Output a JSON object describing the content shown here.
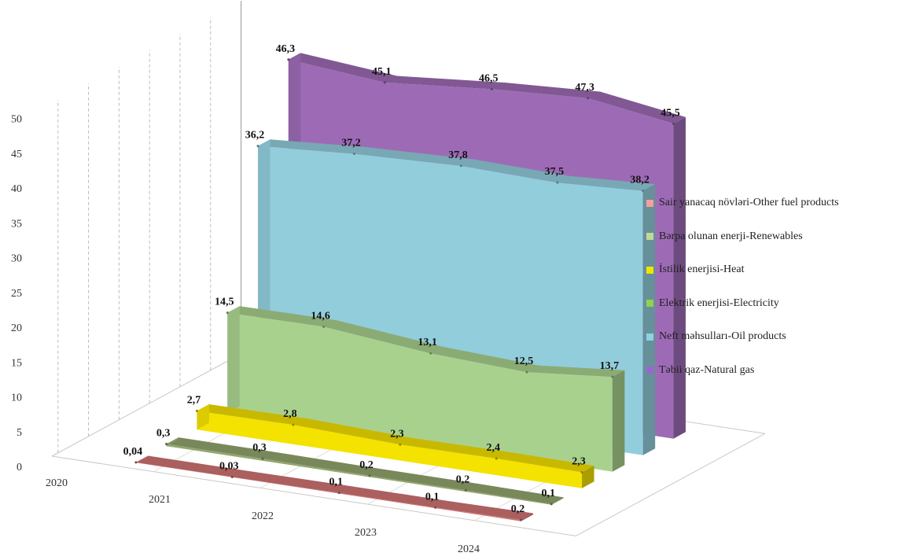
{
  "chart_data": {
    "type": "area",
    "title": "",
    "xlabel": "",
    "ylabel": "",
    "categories": [
      "2020",
      "2021",
      "2022",
      "2023",
      "2024"
    ],
    "ylim": [
      0,
      50
    ],
    "yticks": [
      "0",
      "5",
      "10",
      "15",
      "20",
      "25",
      "30",
      "35",
      "40",
      "45",
      "50"
    ],
    "grid": true,
    "legend_position": "right",
    "series": [
      {
        "name": "Təbii qaz-Natural gas",
        "color": "#9d6bb5",
        "values": [
          46.3,
          45.1,
          46.5,
          47.3,
          45.5
        ],
        "labels": [
          "46,3",
          "45,1",
          "46,5",
          "47,3",
          "45,5"
        ]
      },
      {
        "name": "Neft məhsulları-Oil products",
        "color": "#92cddc",
        "values": [
          36.2,
          37.2,
          37.8,
          37.5,
          38.2
        ],
        "labels": [
          "36,2",
          "37,2",
          "37,8",
          "37,5",
          "38,2"
        ]
      },
      {
        "name": "Elektrik enerjisi-Electricity",
        "color": "#a9d18e",
        "values": [
          14.5,
          14.6,
          13.1,
          12.5,
          13.7
        ],
        "labels": [
          "14,5",
          "14,6",
          "13,1",
          "12,5",
          "13,7"
        ]
      },
      {
        "name": "İstilik enerjisi-Heat",
        "color": "#f4e200",
        "values": [
          2.7,
          2.8,
          2.3,
          2.4,
          2.3
        ],
        "labels": [
          "2,7",
          "2,8",
          "2,3",
          "2,4",
          "2,3"
        ]
      },
      {
        "name": "Bərpa olunan enerji-Renewables",
        "color": "#93a66e",
        "values": [
          0.3,
          0.3,
          0.2,
          0.2,
          0.1
        ],
        "labels": [
          "0,3",
          "0,3",
          "0,2",
          "0,2",
          "0,1"
        ]
      },
      {
        "name": "Sair yanacaq növləri-Other fuel products",
        "color": "#d07474",
        "values": [
          0.04,
          0.03,
          0.1,
          0.1,
          0.2
        ],
        "labels": [
          "0,04",
          "0,03",
          "0,1",
          "0,1",
          "0,2"
        ]
      }
    ],
    "legend": [
      {
        "label": "Sair yanacaq növləri-Other fuel products",
        "color": "#f4a09c"
      },
      {
        "label": "Bərpa olunan enerji-Renewables",
        "color": "#c3d69b"
      },
      {
        "label": "İstilik enerjisi-Heat",
        "color": "#f4e200"
      },
      {
        "label": "Elektrik enerjisi-Electricity",
        "color": "#92d050"
      },
      {
        "label": "Neft məhsulları-Oil products",
        "color": "#8dd3e3"
      },
      {
        "label": "Təbii qaz-Natural gas",
        "color": "#9966cc"
      }
    ]
  }
}
